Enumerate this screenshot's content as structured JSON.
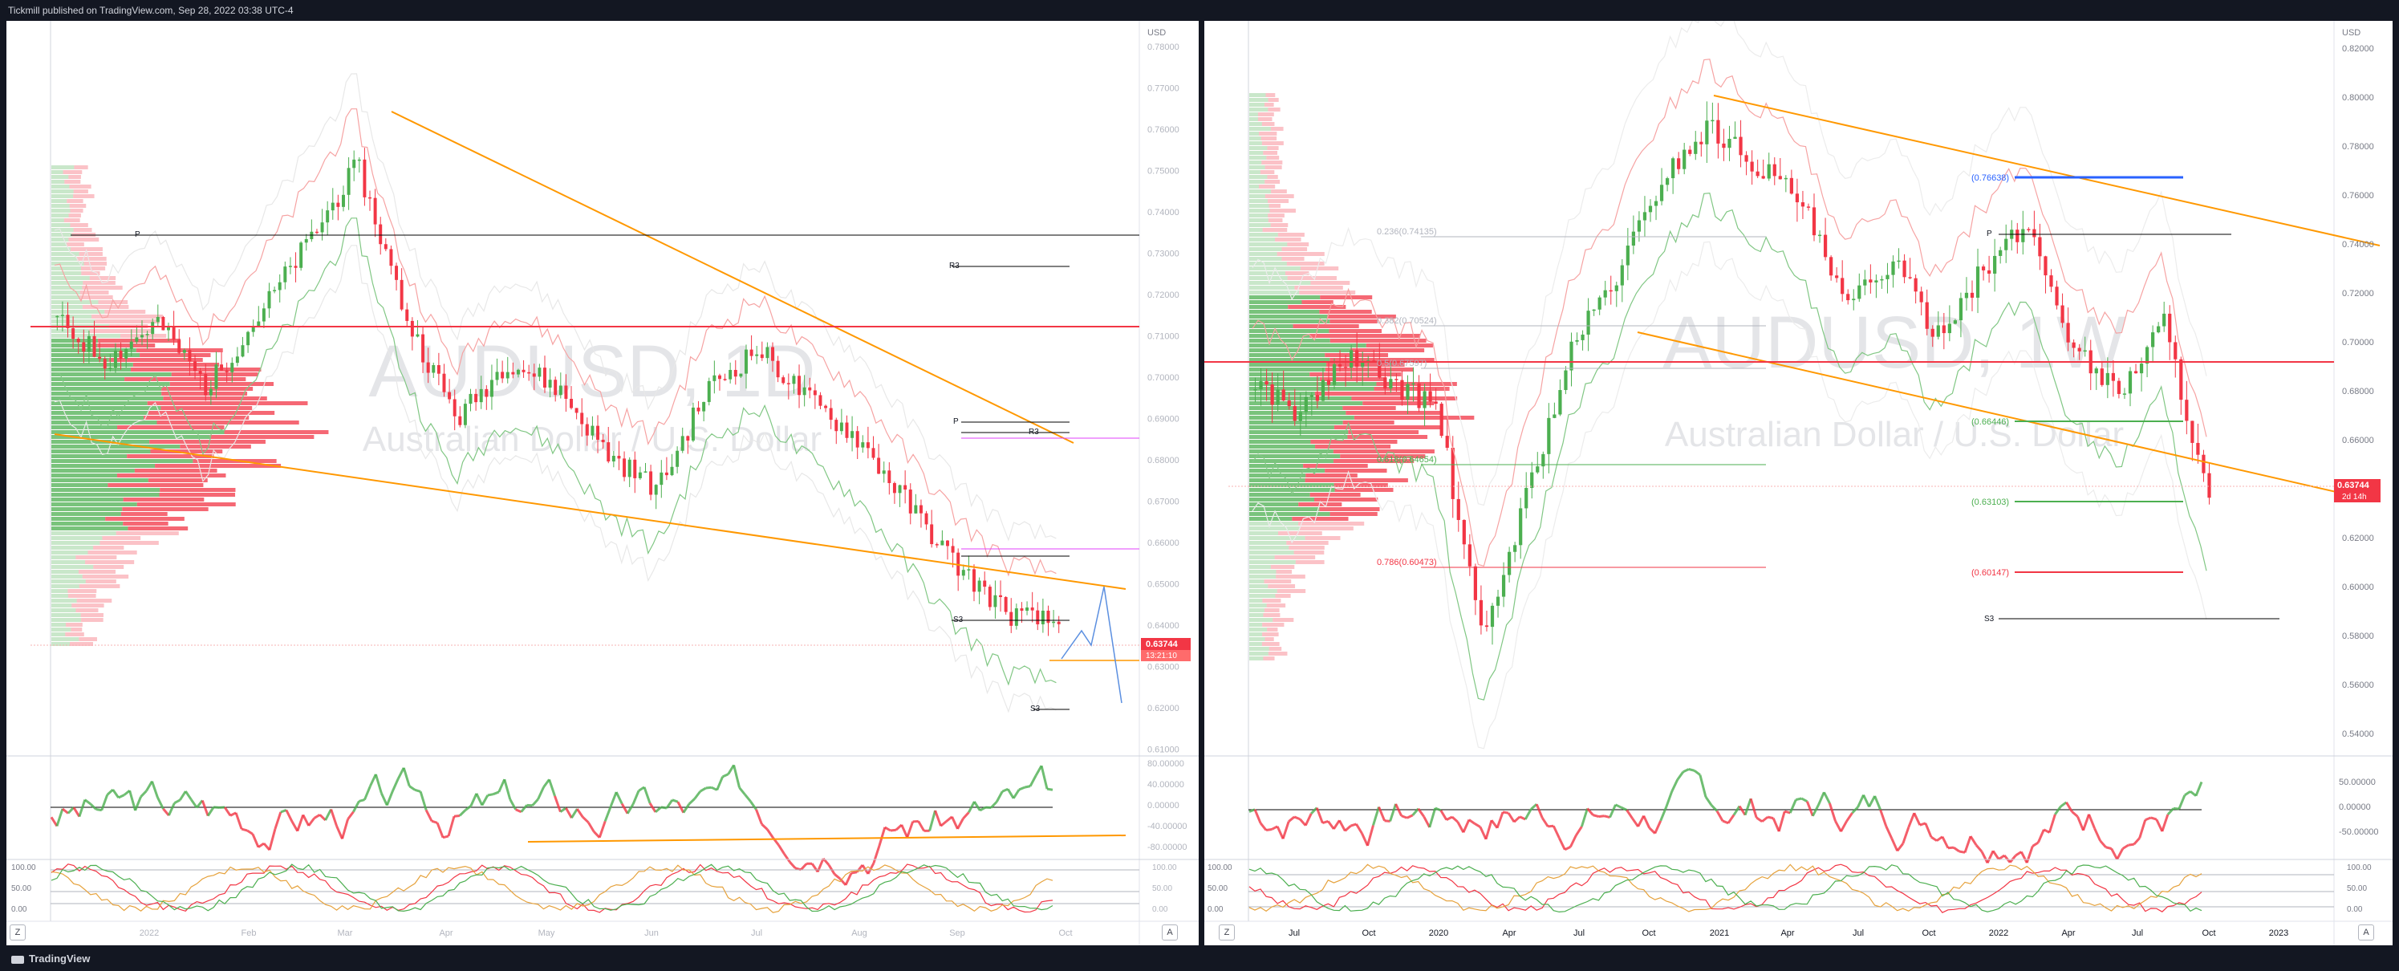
{
  "header": {
    "publisher_line": "Tickmill published on TradingView.com, Sep 28, 2022 03:38 UTC-4"
  },
  "footer": {
    "brand": "TradingView"
  },
  "colors": {
    "bull": "#4caf50",
    "bear": "#f23645",
    "trendline": "#ff9800",
    "pivot_line": "#000000",
    "resistance_red": "#f23645",
    "fib_blue": "#2962ff",
    "magenta": "#e040fb",
    "forecast": "#5b8fe0"
  },
  "left_chart": {
    "watermark_symbol": "AUDUSD, 1D",
    "watermark_name": "Australian Dollar / U.S. Dollar",
    "axis_currency": "USD",
    "price_ticks": [
      "0.78000",
      "0.77000",
      "0.76000",
      "0.75000",
      "0.74000",
      "0.73000",
      "0.72000",
      "0.71000",
      "0.70000",
      "0.69000",
      "0.68000",
      "0.67000",
      "0.66000",
      "0.65000",
      "0.64000",
      "0.63000",
      "0.62000",
      "0.61000"
    ],
    "time_ticks": [
      "2022",
      "Feb",
      "Mar",
      "Apr",
      "May",
      "Jun",
      "Jul",
      "Aug",
      "Sep",
      "Oct"
    ],
    "pivot_labels": [
      "P",
      "R3",
      "R3",
      "P",
      "S3",
      "S3"
    ],
    "last_price": "0.63744",
    "countdown": "13:21:10",
    "osc1_ticks": [
      "80.00000",
      "40.00000",
      "0.00000",
      "-40.00000",
      "-80.00000"
    ],
    "osc2_ticks": [
      "100.00",
      "50.00",
      "0.00"
    ],
    "z_button": "Z",
    "a_button": "A"
  },
  "right_chart": {
    "watermark_symbol": "AUDUSD, 1W",
    "watermark_name": "Australian Dollar / U.S. Dollar",
    "axis_currency": "USD",
    "price_ticks": [
      "0.82000",
      "0.80000",
      "0.78000",
      "0.76000",
      "0.74000",
      "0.72000",
      "0.70000",
      "0.68000",
      "0.66000",
      "0.64000",
      "0.62000",
      "0.60000",
      "0.58000",
      "0.56000",
      "0.54000"
    ],
    "time_ticks": [
      "Jul",
      "Oct",
      "2020",
      "Apr",
      "Jul",
      "Oct",
      "2021",
      "Apr",
      "Jul",
      "Oct",
      "2022",
      "Apr",
      "Jul",
      "Oct",
      "2023"
    ],
    "fib_labels": [
      "0.236(0.74135)",
      "0.382(0.70524)",
      "0.5(0.67597)",
      "0.618(0.64654)",
      "0.786(0.60473)"
    ],
    "level_labels": [
      "(0.76638)",
      "(0.66446)",
      "(0.63103)",
      "(0.60147)"
    ],
    "pivot_labels": [
      "P",
      "S3"
    ],
    "last_price": "0.63744",
    "countdown": "2d 14h",
    "osc1_ticks": [
      "50.00000",
      "0.00000",
      "-50.00000"
    ],
    "osc2_ticks": [
      "100.00",
      "50.00",
      "0.00"
    ],
    "z_button": "Z",
    "a_button": "A"
  }
}
